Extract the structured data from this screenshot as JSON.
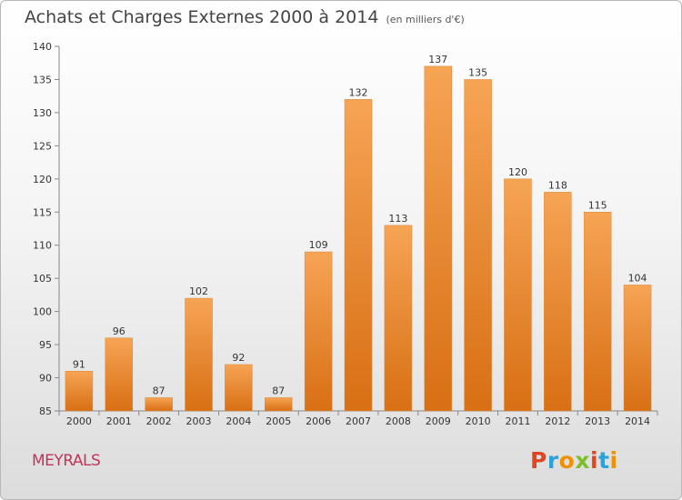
{
  "header": {
    "title": "Achats et Charges Externes 2000 à 2014",
    "unit": "(en milliers d'€)"
  },
  "footer": {
    "commune": "MEYRALS",
    "logo_text": "Proxiti"
  },
  "colors": {
    "bar_light": "#f6a455",
    "bar_dark": "#d86f14",
    "commune": "#c0365a",
    "logo_letters": [
      "#e2461f",
      "#29a3d9",
      "#f29100",
      "#7cbf28",
      "#e2461f",
      "#29a3d9",
      "#f29100"
    ]
  },
  "chart_data": {
    "type": "bar",
    "title": "Achats et Charges Externes 2000 à 2014",
    "subtitle": "(en milliers d'€)",
    "categories": [
      "2000",
      "2001",
      "2002",
      "2003",
      "2004",
      "2005",
      "2006",
      "2007",
      "2008",
      "2009",
      "2010",
      "2011",
      "2012",
      "2013",
      "2014"
    ],
    "values": [
      91,
      96,
      87,
      102,
      92,
      87,
      109,
      132,
      113,
      137,
      135,
      120,
      118,
      115,
      104
    ],
    "ylim": [
      85,
      140
    ],
    "yticks": [
      85,
      90,
      95,
      100,
      105,
      110,
      115,
      120,
      125,
      130,
      135,
      140
    ],
    "grid": false,
    "data_labels": true
  }
}
